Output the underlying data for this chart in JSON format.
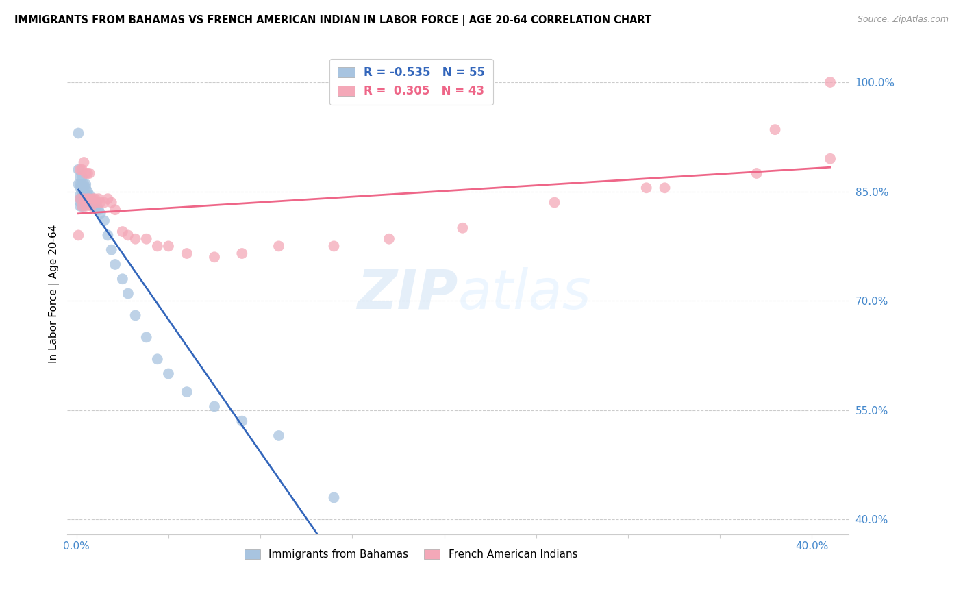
{
  "title": "IMMIGRANTS FROM BAHAMAS VS FRENCH AMERICAN INDIAN IN LABOR FORCE | AGE 20-64 CORRELATION CHART",
  "source": "Source: ZipAtlas.com",
  "ylabel": "In Labor Force | Age 20-64",
  "R_blue": -0.535,
  "N_blue": 55,
  "R_pink": 0.305,
  "N_pink": 43,
  "xlim": [
    -0.005,
    0.42
  ],
  "ylim": [
    0.38,
    1.04
  ],
  "blue_color": "#A8C4E0",
  "pink_color": "#F4A8B8",
  "blue_line_color": "#3366BB",
  "pink_line_color": "#EE6688",
  "watermark_zip": "ZIP",
  "watermark_atlas": "atlas",
  "legend_label_blue": "Immigrants from Bahamas",
  "legend_label_pink": "French American Indians",
  "blue_x": [
    0.001,
    0.001,
    0.001,
    0.002,
    0.002,
    0.002,
    0.002,
    0.002,
    0.002,
    0.002,
    0.003,
    0.003,
    0.003,
    0.003,
    0.003,
    0.003,
    0.003,
    0.004,
    0.004,
    0.004,
    0.004,
    0.004,
    0.005,
    0.005,
    0.005,
    0.005,
    0.006,
    0.006,
    0.006,
    0.007,
    0.007,
    0.008,
    0.008,
    0.009,
    0.009,
    0.01,
    0.01,
    0.011,
    0.012,
    0.013,
    0.015,
    0.017,
    0.019,
    0.021,
    0.025,
    0.028,
    0.032,
    0.038,
    0.044,
    0.05,
    0.06,
    0.075,
    0.09,
    0.11,
    0.14
  ],
  "blue_y": [
    0.93,
    0.88,
    0.86,
    0.87,
    0.86,
    0.855,
    0.845,
    0.84,
    0.835,
    0.83,
    0.87,
    0.86,
    0.855,
    0.845,
    0.84,
    0.835,
    0.83,
    0.86,
    0.855,
    0.845,
    0.84,
    0.83,
    0.86,
    0.855,
    0.845,
    0.835,
    0.85,
    0.845,
    0.835,
    0.845,
    0.835,
    0.84,
    0.835,
    0.835,
    0.83,
    0.835,
    0.83,
    0.83,
    0.825,
    0.82,
    0.81,
    0.79,
    0.77,
    0.75,
    0.73,
    0.71,
    0.68,
    0.65,
    0.62,
    0.6,
    0.575,
    0.555,
    0.535,
    0.515,
    0.43
  ],
  "pink_x": [
    0.001,
    0.002,
    0.002,
    0.003,
    0.003,
    0.004,
    0.004,
    0.005,
    0.005,
    0.006,
    0.006,
    0.007,
    0.007,
    0.008,
    0.009,
    0.01,
    0.011,
    0.012,
    0.013,
    0.015,
    0.017,
    0.019,
    0.021,
    0.025,
    0.028,
    0.032,
    0.038,
    0.044,
    0.05,
    0.06,
    0.075,
    0.09,
    0.11,
    0.14,
    0.17,
    0.21,
    0.26,
    0.31,
    0.37,
    0.41,
    0.41,
    0.38,
    0.32
  ],
  "pink_y": [
    0.79,
    0.84,
    0.88,
    0.83,
    0.88,
    0.84,
    0.89,
    0.83,
    0.875,
    0.84,
    0.875,
    0.84,
    0.875,
    0.83,
    0.84,
    0.84,
    0.835,
    0.84,
    0.835,
    0.835,
    0.84,
    0.835,
    0.825,
    0.795,
    0.79,
    0.785,
    0.785,
    0.775,
    0.775,
    0.765,
    0.76,
    0.765,
    0.775,
    0.775,
    0.785,
    0.8,
    0.835,
    0.855,
    0.875,
    0.895,
    1.0,
    0.935,
    0.855
  ]
}
